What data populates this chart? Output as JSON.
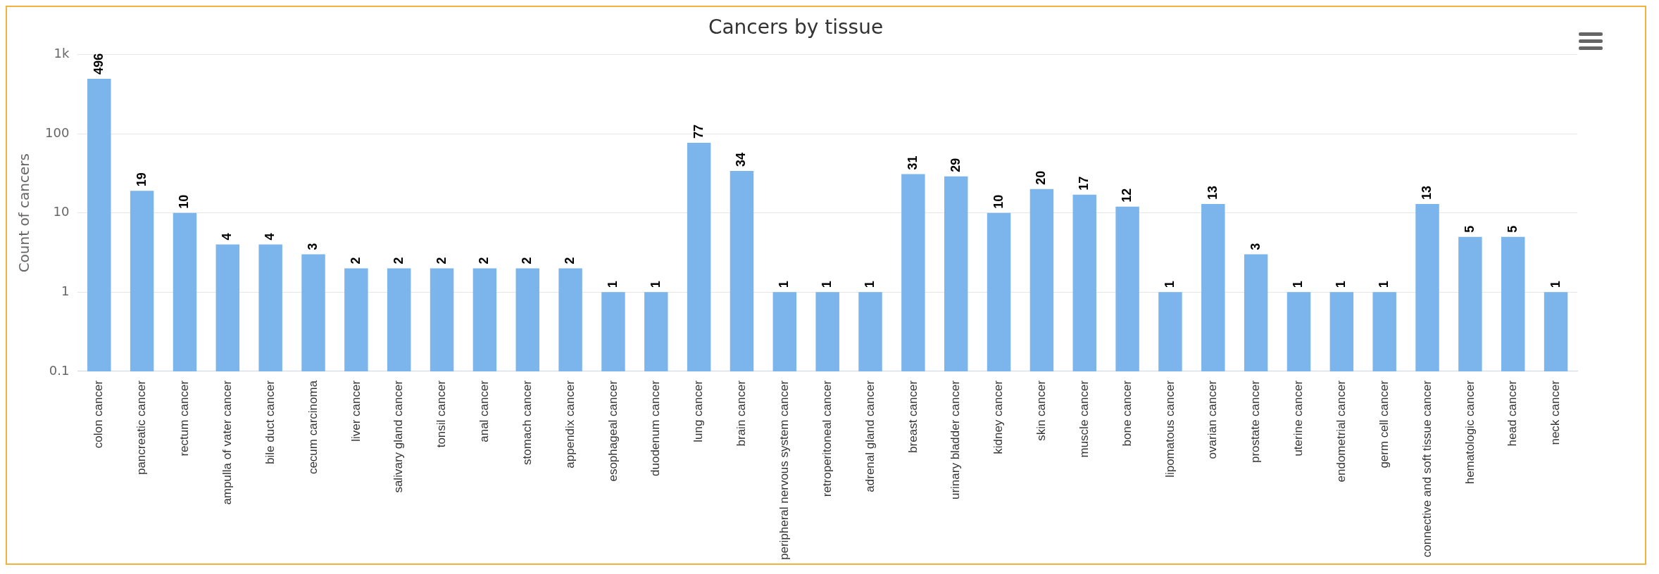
{
  "chart_data": {
    "type": "bar",
    "title": "Cancers by tissue",
    "ylabel": "Count of cancers",
    "categories": [
      "colon cancer",
      "pancreatic cancer",
      "rectum cancer",
      "ampulla of vater cancer",
      "bile duct cancer",
      "cecum carcinoma",
      "liver cancer",
      "salivary gland cancer",
      "tonsil cancer",
      "anal cancer",
      "stomach cancer",
      "appendix cancer",
      "esophageal cancer",
      "duodenum cancer",
      "lung cancer",
      "brain cancer",
      "peripheral nervous system cancer",
      "retroperitoneal cancer",
      "adrenal gland cancer",
      "breast cancer",
      "urinary bladder cancer",
      "kidney cancer",
      "skin cancer",
      "muscle cancer",
      "bone cancer",
      "lipomatous cancer",
      "ovarian cancer",
      "prostate cancer",
      "uterine cancer",
      "endometrial cancer",
      "germ cell cancer",
      "connective and soft tissue cancer",
      "hematologic cancer",
      "head cancer",
      "neck cancer"
    ],
    "values": [
      496,
      19,
      10,
      4,
      4,
      3,
      2,
      2,
      2,
      2,
      2,
      2,
      1,
      1,
      77,
      34,
      1,
      1,
      1,
      31,
      29,
      10,
      20,
      17,
      12,
      1,
      13,
      3,
      1,
      1,
      1,
      13,
      5,
      5,
      1
    ],
    "color": "#7cb5ec",
    "log": "y",
    "ylim": [
      0.1,
      1000
    ],
    "yticks": [
      0.1,
      1,
      10,
      100,
      {
        "value": 1000,
        "label": "1k"
      }
    ],
    "grid": "y",
    "legend": false,
    "data_labels": true
  }
}
